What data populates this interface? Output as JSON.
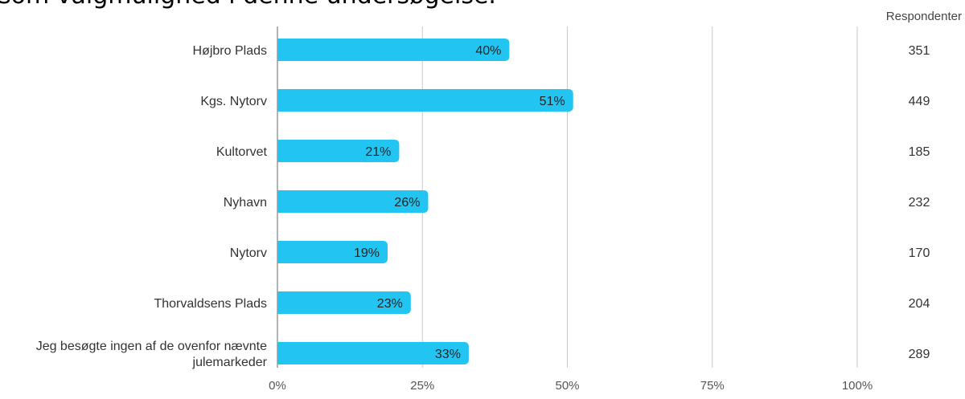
{
  "caption_fragment": "som valgmulighed i denne undersøgelse.",
  "respondents_header": "Respondenter",
  "chart_data": {
    "type": "bar",
    "orientation": "horizontal",
    "categories": [
      "Højbro Plads",
      "Kgs. Nytorv",
      "Kultorvet",
      "Nyhavn",
      "Nytorv",
      "Thorvaldsens Plads",
      "Jeg besøgte ingen af de ovenfor nævnte julemarkeder"
    ],
    "values": [
      40,
      51,
      21,
      26,
      19,
      23,
      33
    ],
    "value_labels": [
      "40%",
      "51%",
      "21%",
      "26%",
      "19%",
      "23%",
      "33%"
    ],
    "respondents": [
      "351",
      "449",
      "185",
      "232",
      "170",
      "204",
      "289"
    ],
    "xlim": [
      0,
      100
    ],
    "x_ticks": [
      0,
      25,
      50,
      75,
      100
    ],
    "x_tick_labels": [
      "0%",
      "25%",
      "50%",
      "75%",
      "100%"
    ],
    "grid": true,
    "bar_color": "#22c5f2",
    "grid_color": "#c8c8c8",
    "axis_color": "#999999"
  }
}
